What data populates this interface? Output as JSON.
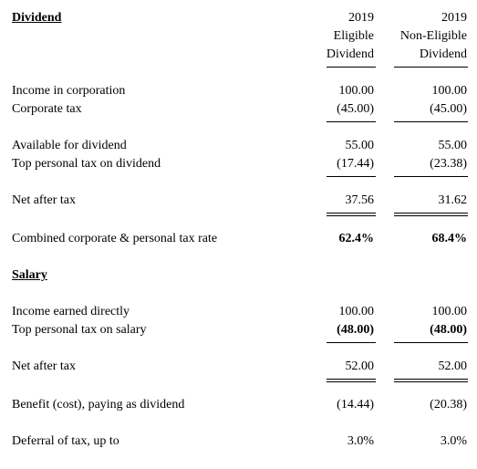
{
  "dividend": {
    "heading": "Dividend",
    "columns": [
      {
        "lines": [
          "2019",
          "Eligible",
          "Dividend"
        ]
      },
      {
        "lines": [
          "2019",
          "Non-Eligible",
          "Dividend"
        ]
      }
    ],
    "rows": [
      {
        "label": "Income in corporation",
        "values": [
          "100.00",
          "100.00"
        ]
      },
      {
        "label": "Corporate tax",
        "values": [
          "(45.00)",
          "(45.00)"
        ]
      },
      {
        "label": "Available for dividend",
        "values": [
          "55.00",
          "55.00"
        ]
      },
      {
        "label": "Top personal tax on dividend",
        "values": [
          "(17.44)",
          "(23.38)"
        ]
      },
      {
        "label": "Net after tax",
        "values": [
          "37.56",
          "31.62"
        ]
      },
      {
        "label": "Combined corporate & personal tax rate",
        "values": [
          "62.4%",
          "68.4%"
        ]
      }
    ]
  },
  "salary": {
    "heading": "Salary",
    "rows": [
      {
        "label": "Income earned directly",
        "values": [
          "100.00",
          "100.00"
        ]
      },
      {
        "label": "Top personal tax on salary",
        "values": [
          "(48.00)",
          "(48.00)"
        ]
      },
      {
        "label": "Net after tax",
        "values": [
          "52.00",
          "52.00"
        ]
      }
    ]
  },
  "summary": {
    "rows": [
      {
        "label": "Benefit (cost), paying as dividend",
        "values": [
          "(14.44)",
          "(20.38)"
        ]
      },
      {
        "label": "Deferral of tax, up to",
        "values": [
          "3.0%",
          "3.0%"
        ]
      }
    ]
  }
}
